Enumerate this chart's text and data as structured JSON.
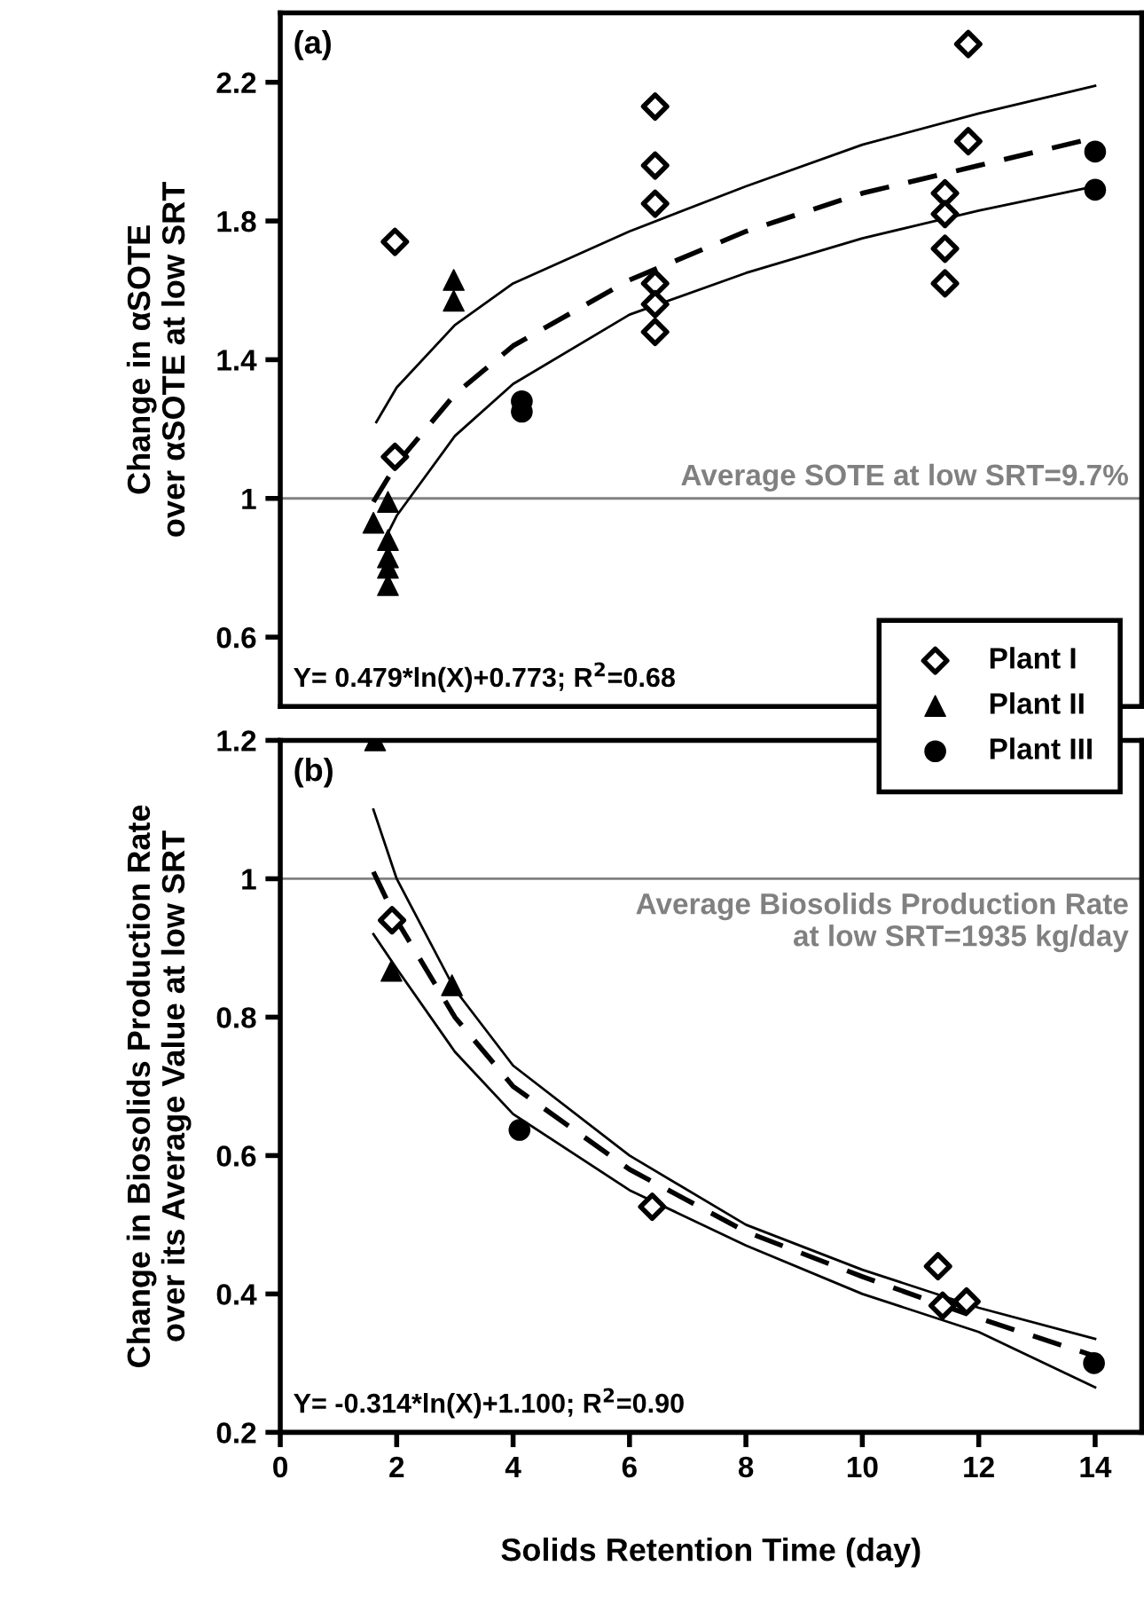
{
  "chart_data": [
    {
      "type": "scatter",
      "ylabel": "Change in αSOTE\nover αSOTE at low SRT",
      "annotations": [
        "(a)",
        "Y= 0.479*ln(X)+0.773; R$^{2}$=0.68",
        "Average SOTE at low SRT=9.7%"
      ],
      "xlim": [
        0,
        14.8
      ],
      "ylim": [
        0.4,
        2.4
      ],
      "yticks": [
        0.6,
        {
          "value": 1.0,
          "label": "1"
        },
        1.4,
        1.8,
        2.2
      ],
      "tick_labels": "y",
      "grid": false,
      "legend": "bottom right",
      "ref_lines": [
        {
          "axis": "y",
          "value": 1.0,
          "color": "#808080"
        }
      ],
      "series": [
        {
          "name": "Plant I",
          "color": "#000000",
          "marker": "diamond",
          "x": [
            1.97,
            1.97,
            6.44,
            6.44,
            6.44,
            6.44,
            6.44,
            6.44,
            11.42,
            11.42,
            11.42,
            11.42,
            11.82,
            11.82
          ],
          "values": [
            1.74,
            1.12,
            2.13,
            1.96,
            1.85,
            1.62,
            1.56,
            1.48,
            1.88,
            1.82,
            1.72,
            1.62,
            2.31,
            2.03
          ]
        },
        {
          "name": "Plant II",
          "color": "#000000",
          "marker": "triangle",
          "x": [
            1.6,
            1.85,
            1.85,
            1.85,
            1.85,
            1.85,
            2.98,
            2.98
          ],
          "values": [
            0.93,
            0.99,
            0.88,
            0.83,
            0.8,
            0.75,
            1.63,
            1.57
          ]
        },
        {
          "name": "Plant III",
          "color": "#000000",
          "marker": "circle",
          "x": [
            4.15,
            4.15,
            14.0,
            14.0
          ],
          "values": [
            1.28,
            1.25,
            2.0,
            1.89
          ]
        },
        {
          "type": "line",
          "color": "#000000",
          "line_style": "solid",
          "x": [
            1.65,
            2,
            3,
            4,
            6,
            8,
            10,
            12,
            14
          ],
          "values": [
            1.22,
            1.32,
            1.5,
            1.62,
            1.77,
            1.9,
            2.02,
            2.11,
            2.19
          ]
        },
        {
          "type": "line",
          "color": "#000000",
          "line_style": "dashed",
          "x": [
            1.6,
            2,
            3,
            4,
            6,
            8,
            10,
            12,
            14
          ],
          "values": [
            0.99,
            1.1,
            1.3,
            1.44,
            1.63,
            1.77,
            1.88,
            1.96,
            2.04
          ]
        },
        {
          "type": "line",
          "color": "#000000",
          "line_style": "solid",
          "x": [
            1.85,
            2,
            3,
            4,
            6,
            8,
            10,
            12,
            14
          ],
          "values": [
            0.9,
            0.95,
            1.18,
            1.33,
            1.53,
            1.65,
            1.75,
            1.83,
            1.9
          ]
        }
      ]
    },
    {
      "type": "scatter",
      "ylabel": "Change in Biosolids Production Rate\nover its Average Value at low SRT",
      "xlabel": "Solids Retention Time (day)",
      "annotations": [
        "(b)",
        "Y= -0.314*ln(X)+1.100; R$^{2}$=0.90",
        "Average Biosolids Production Rate\nat low SRT=1935 kg/day"
      ],
      "xlim": [
        0,
        14.8
      ],
      "xticks": [
        0,
        2,
        4,
        6,
        8,
        10,
        12,
        14
      ],
      "ylim": [
        0.2,
        1.2
      ],
      "yticks": [
        0.2,
        0.4,
        0.6,
        0.8,
        {
          "value": 1.0,
          "label": "1"
        },
        1.2
      ],
      "grid": false,
      "ref_lines": [
        {
          "axis": "y",
          "value": 1.0,
          "color": "#808080"
        }
      ],
      "series": [
        {
          "color": "#000000",
          "marker": "diamond",
          "x": [
            1.92,
            6.39,
            11.3,
            11.38,
            11.79
          ],
          "values": [
            0.94,
            0.526,
            0.44,
            0.383,
            0.389
          ]
        },
        {
          "color": "#000000",
          "marker": "triangle",
          "x": [
            1.63,
            1.91,
            2.95
          ],
          "values": [
            1.2,
            0.867,
            0.846
          ]
        },
        {
          "color": "#000000",
          "marker": "circle",
          "x": [
            4.11,
            13.98
          ],
          "values": [
            0.637,
            0.3
          ]
        },
        {
          "type": "line",
          "color": "#000000",
          "line_style": "solid",
          "x": [
            1.6,
            2,
            3,
            4,
            6,
            8,
            10,
            12,
            14
          ],
          "values": [
            1.1,
            1.0,
            0.84,
            0.73,
            0.6,
            0.5,
            0.435,
            0.38,
            0.335
          ]
        },
        {
          "type": "line",
          "color": "#000000",
          "line_style": "dashed",
          "x": [
            1.6,
            2,
            3,
            4,
            6,
            8,
            10,
            12,
            14
          ],
          "values": [
            1.01,
            0.94,
            0.8,
            0.7,
            0.58,
            0.49,
            0.425,
            0.365,
            0.31
          ]
        },
        {
          "type": "line",
          "color": "#000000",
          "line_style": "solid",
          "x": [
            1.6,
            2,
            3,
            4,
            6,
            8,
            10,
            12,
            14
          ],
          "values": [
            0.92,
            0.87,
            0.75,
            0.66,
            0.55,
            0.47,
            0.4,
            0.345,
            0.265
          ]
        }
      ]
    }
  ]
}
